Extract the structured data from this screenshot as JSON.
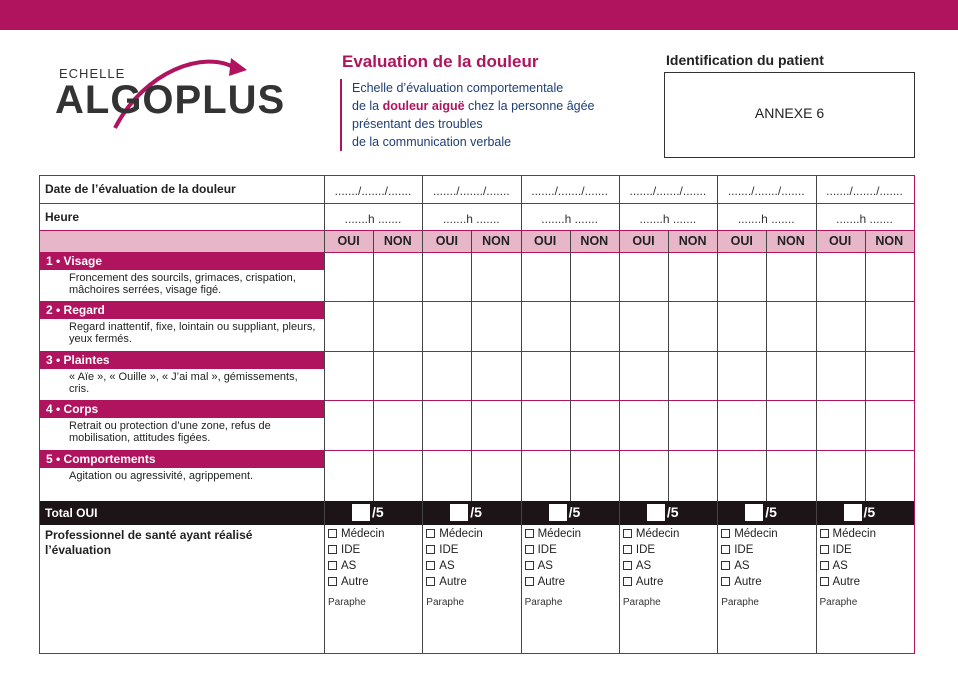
{
  "logo": {
    "small": "ECHELLE",
    "big": "ALGOPLUS"
  },
  "heading": "Evaluation de la douleur",
  "description": {
    "line1": "Echelle d’évaluation comportementale",
    "line2_pre": "de la ",
    "line2_bold": "douleur aiguë",
    "line2_post": " chez la personne âgée",
    "line3": "présentant des troubles",
    "line4": "de la communication verbale"
  },
  "patient": {
    "title": "Identification du patient",
    "annex": "ANNEXE 6"
  },
  "table": {
    "date_label": "Date de l’évaluation de la douleur",
    "date_value": "......./......./.......",
    "hour_label": "Heure",
    "hour_value": ".......h .......",
    "oui": "OUI",
    "non": "NON",
    "criteria": [
      {
        "title": "1 • Visage",
        "desc": "Froncement des sourcils, grimaces, crispation, mâchoires serrées, visage figé."
      },
      {
        "title": "2 • Regard",
        "desc": "Regard inattentif, fixe, lointain ou suppliant, pleurs, yeux fermés."
      },
      {
        "title": "3 • Plaintes",
        "desc": "« Aïe », « Ouille », « J’ai mal », gémissements, cris."
      },
      {
        "title": "4 • Corps",
        "desc": "Retrait ou protection d’une zone, refus de mobilisation, attitudes figées."
      },
      {
        "title": "5 • Comportements",
        "desc": "Agitation ou agressivité, agrippement."
      }
    ],
    "total_label": "Total OUI",
    "total_suffix": "/5",
    "pro_label": "Professionnel de santé ayant réalisé l’évaluation",
    "pro_options": [
      "Médecin",
      "IDE",
      "AS",
      "Autre"
    ],
    "paraphe": "Paraphe"
  },
  "colors": {
    "accent": "#b0145e",
    "header_pink": "#e7b7c9",
    "total_bg": "#1c1416",
    "text_blue": "#1f3f73"
  }
}
